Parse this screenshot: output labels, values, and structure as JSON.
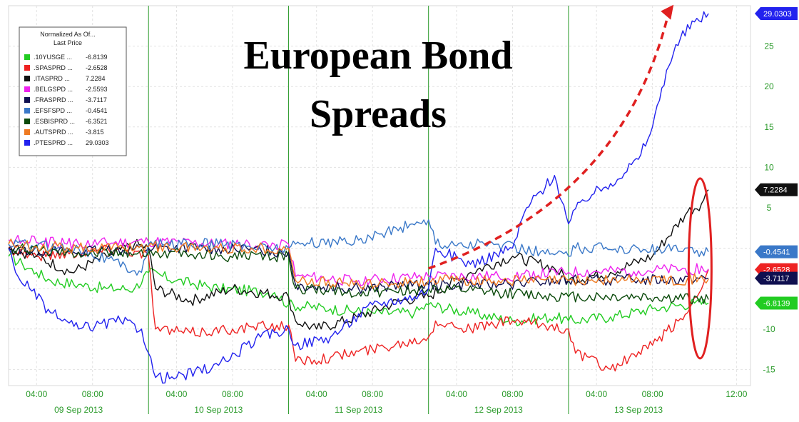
{
  "chart_data": {
    "type": "line",
    "title": [
      "European Bond",
      "Spreads"
    ],
    "legend": {
      "header": [
        "Normalized As Of...",
        "Last Price"
      ],
      "placement": "top-left"
    },
    "y_axis": {
      "side": "right",
      "ylim": [
        -17,
        30
      ],
      "ticks": [
        25,
        20,
        15,
        10,
        5,
        -10,
        -15
      ]
    },
    "x_axis": {
      "time_ticks": [
        "04:00",
        "08:00",
        "04:00",
        "08:00",
        "04:00",
        "08:00",
        "04:00",
        "08:00",
        "04:00",
        "08:00",
        "12:00"
      ],
      "days": [
        "09 Sep 2013",
        "10 Sep 2013",
        "11 Sep 2013",
        "12 Sep 2013",
        "13 Sep 2013"
      ]
    },
    "grid": true,
    "series": [
      {
        "name": ".10YUSGE ...",
        "last": "-6.8139",
        "color": "#22cc22",
        "x": [
          0,
          0.1,
          0.2,
          0.3,
          0.5,
          0.7,
          0.9,
          1.0,
          1.2,
          1.5,
          1.9,
          2.0,
          2.3,
          2.6,
          2.9,
          3.0,
          3.3,
          3.6,
          3.9,
          4.0,
          4.3,
          4.6,
          4.9,
          5.0
        ],
        "y": [
          -1,
          -2,
          -3,
          -4,
          -4.5,
          -5,
          -5,
          -3,
          -4,
          -5,
          -5.5,
          -7,
          -7.5,
          -8,
          -8,
          -7,
          -8,
          -9,
          -8.5,
          -9,
          -8.5,
          -7.5,
          -6.8,
          -6.8
        ]
      },
      {
        "name": ".SPASPRD ...",
        "last": "-2.6528",
        "color": "#ee2222",
        "x": [
          0,
          0.2,
          0.5,
          0.8,
          1.0,
          1.05,
          1.3,
          1.6,
          2.0,
          2.05,
          2.3,
          2.6,
          3.0,
          3.05,
          3.3,
          3.6,
          4.0,
          4.05,
          4.3,
          4.6,
          4.85,
          5.0
        ],
        "y": [
          0,
          -1,
          -0.5,
          0,
          -1,
          -10,
          -10.5,
          -10,
          -9.5,
          -14,
          -13.5,
          -12.5,
          -11,
          -9,
          -10,
          -9,
          -10,
          -13,
          -15,
          -12,
          -8,
          -2.65
        ]
      },
      {
        "name": ".ITASPRD ...",
        "last": "7.2284",
        "color": "#111111",
        "x": [
          0,
          0.2,
          0.45,
          0.7,
          0.9,
          1.0,
          1.05,
          1.3,
          1.6,
          2.0,
          2.05,
          2.2,
          2.5,
          2.8,
          3.0,
          3.3,
          3.6,
          3.9,
          4.0,
          4.3,
          4.6,
          4.85,
          4.95,
          5.0
        ],
        "y": [
          0,
          -1,
          -3,
          -1,
          0.5,
          0,
          -5,
          -6.5,
          -5,
          -6,
          -9,
          -10,
          -8.5,
          -6.5,
          -6,
          -3,
          -1,
          -2.5,
          -4,
          -3,
          -1,
          4.5,
          5.5,
          7.23
        ]
      },
      {
        "name": ".BELGSPD ...",
        "last": "-2.5593",
        "color": "#ee22ee",
        "x": [
          0,
          0.5,
          1.0,
          1.5,
          2.0,
          2.05,
          2.5,
          3.0,
          3.5,
          4.0,
          4.5,
          5.0
        ],
        "y": [
          1,
          0.5,
          0.8,
          0.5,
          0.5,
          -3.5,
          -4,
          -3.5,
          -3.5,
          -3,
          -2.8,
          -2.56
        ]
      },
      {
        "name": ".FRASPRD ...",
        "last": "-3.7117",
        "color": "#101050",
        "x": [
          0,
          0.5,
          1.0,
          1.5,
          2.0,
          2.05,
          2.5,
          3.0,
          3.5,
          4.0,
          4.5,
          5.0
        ],
        "y": [
          0,
          -0.5,
          0,
          0,
          -0.5,
          -4.5,
          -5,
          -4.5,
          -4.5,
          -4,
          -3.9,
          -3.71
        ]
      },
      {
        "name": ".EFSFSPD ...",
        "last": "-0.4541",
        "color": "#3a78c8",
        "x": [
          0,
          0.5,
          0.95,
          1.0,
          1.5,
          2.0,
          2.05,
          2.5,
          3.0,
          3.05,
          3.5,
          4.0,
          4.05,
          4.5,
          5.0
        ],
        "y": [
          0.5,
          0,
          -3,
          0.5,
          0.5,
          0,
          0.5,
          1,
          3.5,
          0.5,
          0.5,
          -1,
          0,
          0,
          -0.45
        ]
      },
      {
        "name": ".ESBISPRD ...",
        "last": "-6.3521",
        "color": "#0b4a0b",
        "x": [
          0,
          0.5,
          1.0,
          1.5,
          2.0,
          2.05,
          2.5,
          3.0,
          3.5,
          4.0,
          4.5,
          5.0
        ],
        "y": [
          0,
          -0.5,
          -0.5,
          -1,
          -1,
          -5,
          -5.5,
          -5,
          -5.5,
          -6,
          -6,
          -6.35
        ]
      },
      {
        "name": ".AUTSPRD ...",
        "last": "-3.815",
        "color": "#ee7a22",
        "x": [
          0,
          0.5,
          1.0,
          1.5,
          2.0,
          2.05,
          2.5,
          3.0,
          3.5,
          4.0,
          4.5,
          5.0
        ],
        "y": [
          0.5,
          0,
          0.2,
          0,
          0,
          -4,
          -4.5,
          -4,
          -4,
          -4,
          -3.9,
          -3.82
        ]
      },
      {
        "name": ".PTESPRD ...",
        "last": "29.0303",
        "color": "#2222ee",
        "x": [
          0,
          0.05,
          0.15,
          0.3,
          0.5,
          0.8,
          0.95,
          1.0,
          1.05,
          1.2,
          1.5,
          1.8,
          2.0,
          2.05,
          2.3,
          2.6,
          2.9,
          3.0,
          3.05,
          3.3,
          3.6,
          3.7,
          3.9,
          4.0,
          4.1,
          4.3,
          4.5,
          4.6,
          4.7,
          4.8,
          4.9,
          5.0
        ],
        "y": [
          0,
          -3,
          -5,
          -8,
          -10,
          -9,
          -10,
          -13,
          -16,
          -16,
          -14.5,
          -11,
          -10,
          -12,
          -11,
          -7,
          -6,
          -5,
          0,
          -2,
          0,
          5,
          9,
          3,
          6,
          8,
          11,
          15,
          22,
          26,
          28,
          29.03
        ]
      }
    ]
  }
}
